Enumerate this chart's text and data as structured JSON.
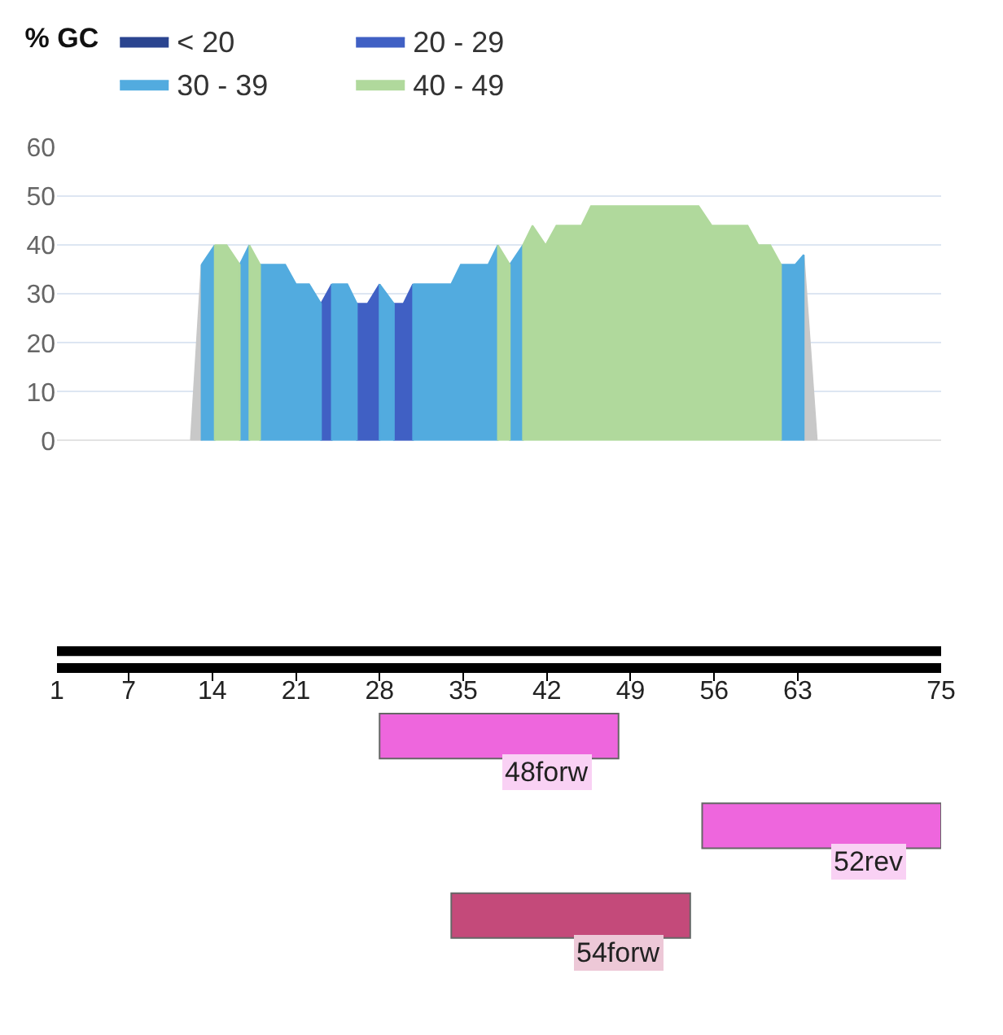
{
  "chart_data": [
    {
      "type": "area",
      "legend_title": "% GC",
      "legend": "top",
      "grid": "y",
      "tick_labels": "y",
      "xlim": [
        1,
        75
      ],
      "xticks": [
        1,
        7,
        14,
        21,
        28,
        35,
        42,
        49,
        56,
        63,
        75
      ],
      "ylim": [
        0,
        60
      ],
      "yticks": [
        0,
        10,
        20,
        30,
        40,
        50,
        60
      ],
      "series": [
        {
          "color": "#c8c8c8",
          "x": [
            1,
            12.2,
            13.1,
            null,
            63.5,
            64.6,
            75
          ],
          "values": [
            0,
            0,
            36,
            null,
            38,
            0,
            0
          ]
        },
        {
          "name": "< 20",
          "color": "#2b4590"
        },
        {
          "name": "20 - 29",
          "color": "#4060c4",
          "x": [
            23.1,
            24.0,
            null,
            26.1,
            27.0,
            28.0,
            null,
            29.2,
            30.0,
            30.8
          ],
          "values": [
            28,
            32,
            null,
            28,
            28,
            32,
            null,
            28,
            28,
            32
          ]
        },
        {
          "name": "30 - 39",
          "color": "#52abdf",
          "x": [
            13.1,
            14.2,
            null,
            16.3,
            17.1,
            null,
            18.0,
            20.1,
            21.0,
            22.1,
            23.1,
            null,
            24.0,
            25.3,
            26.1,
            null,
            28.0,
            29.2,
            null,
            30.8,
            34.0,
            34.8,
            37.1,
            37.9,
            null,
            38.9,
            40.0,
            null,
            61.6,
            62.8,
            63.5
          ],
          "values": [
            36,
            40,
            null,
            36,
            40,
            null,
            36,
            36,
            32,
            32,
            28,
            null,
            32,
            32,
            28,
            null,
            32,
            28,
            null,
            32,
            32,
            36,
            36,
            40,
            null,
            36,
            40,
            null,
            36,
            36,
            38
          ]
        },
        {
          "name": "40 - 49",
          "color": "#b0d99c",
          "x": [
            14.2,
            15.2,
            16.3,
            null,
            17.1,
            18.0,
            null,
            37.9,
            38.9,
            null,
            40.0,
            40.8,
            41.9,
            42.8,
            44.9,
            45.7,
            54.7,
            55.8,
            58.8,
            59.7,
            60.7,
            61.6
          ],
          "values": [
            40,
            40,
            36,
            null,
            40,
            36,
            null,
            40,
            36,
            null,
            40,
            44,
            40,
            44,
            44,
            48,
            48,
            44,
            44,
            40,
            40,
            36
          ]
        }
      ]
    },
    {
      "type": "bar",
      "orientation": "horizontal",
      "tick_labels": "x",
      "categories": [
        null,
        null,
        null
      ],
      "xlim": [
        1,
        75
      ],
      "xticks": [
        1,
        7,
        14,
        21,
        28,
        35,
        42,
        49,
        56,
        63,
        75
      ],
      "base": [
        28,
        55,
        34
      ],
      "values": [
        20,
        20,
        20
      ],
      "colors": [
        "#ee66dd",
        "#ee66dd",
        "#c44a7a"
      ],
      "annotations": [
        "48forw",
        "52rev",
        "54forw"
      ]
    }
  ]
}
